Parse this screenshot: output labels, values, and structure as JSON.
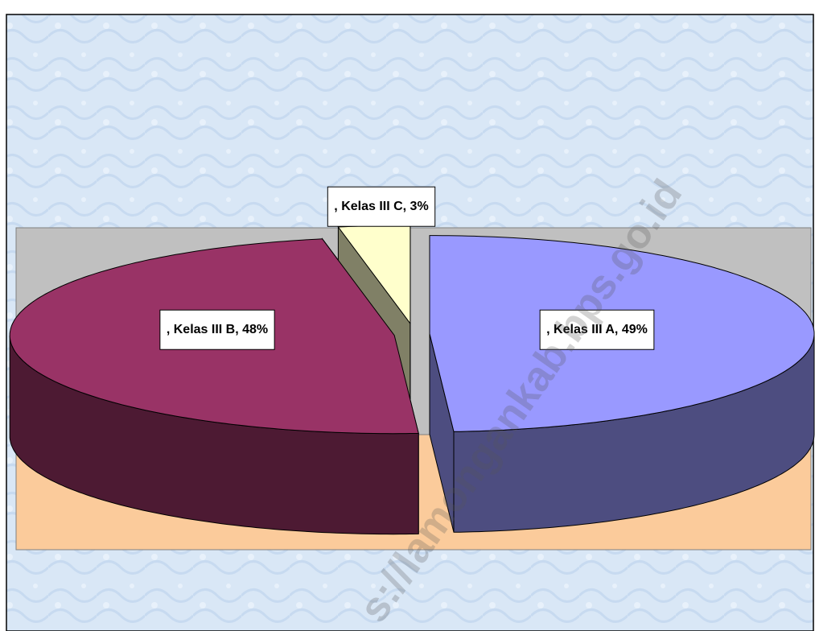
{
  "chart_data": {
    "type": "pie3d",
    "values": [
      49,
      48,
      3
    ],
    "value_labels": [
      ", Kelas III A, 49%",
      ", Kelas III B, 48%",
      ", Kelas III C, 3%"
    ],
    "colors": [
      "#9999ff",
      "#993366",
      "#ffffcc"
    ],
    "watermark": "s://lamongankab.bps.go.id"
  }
}
